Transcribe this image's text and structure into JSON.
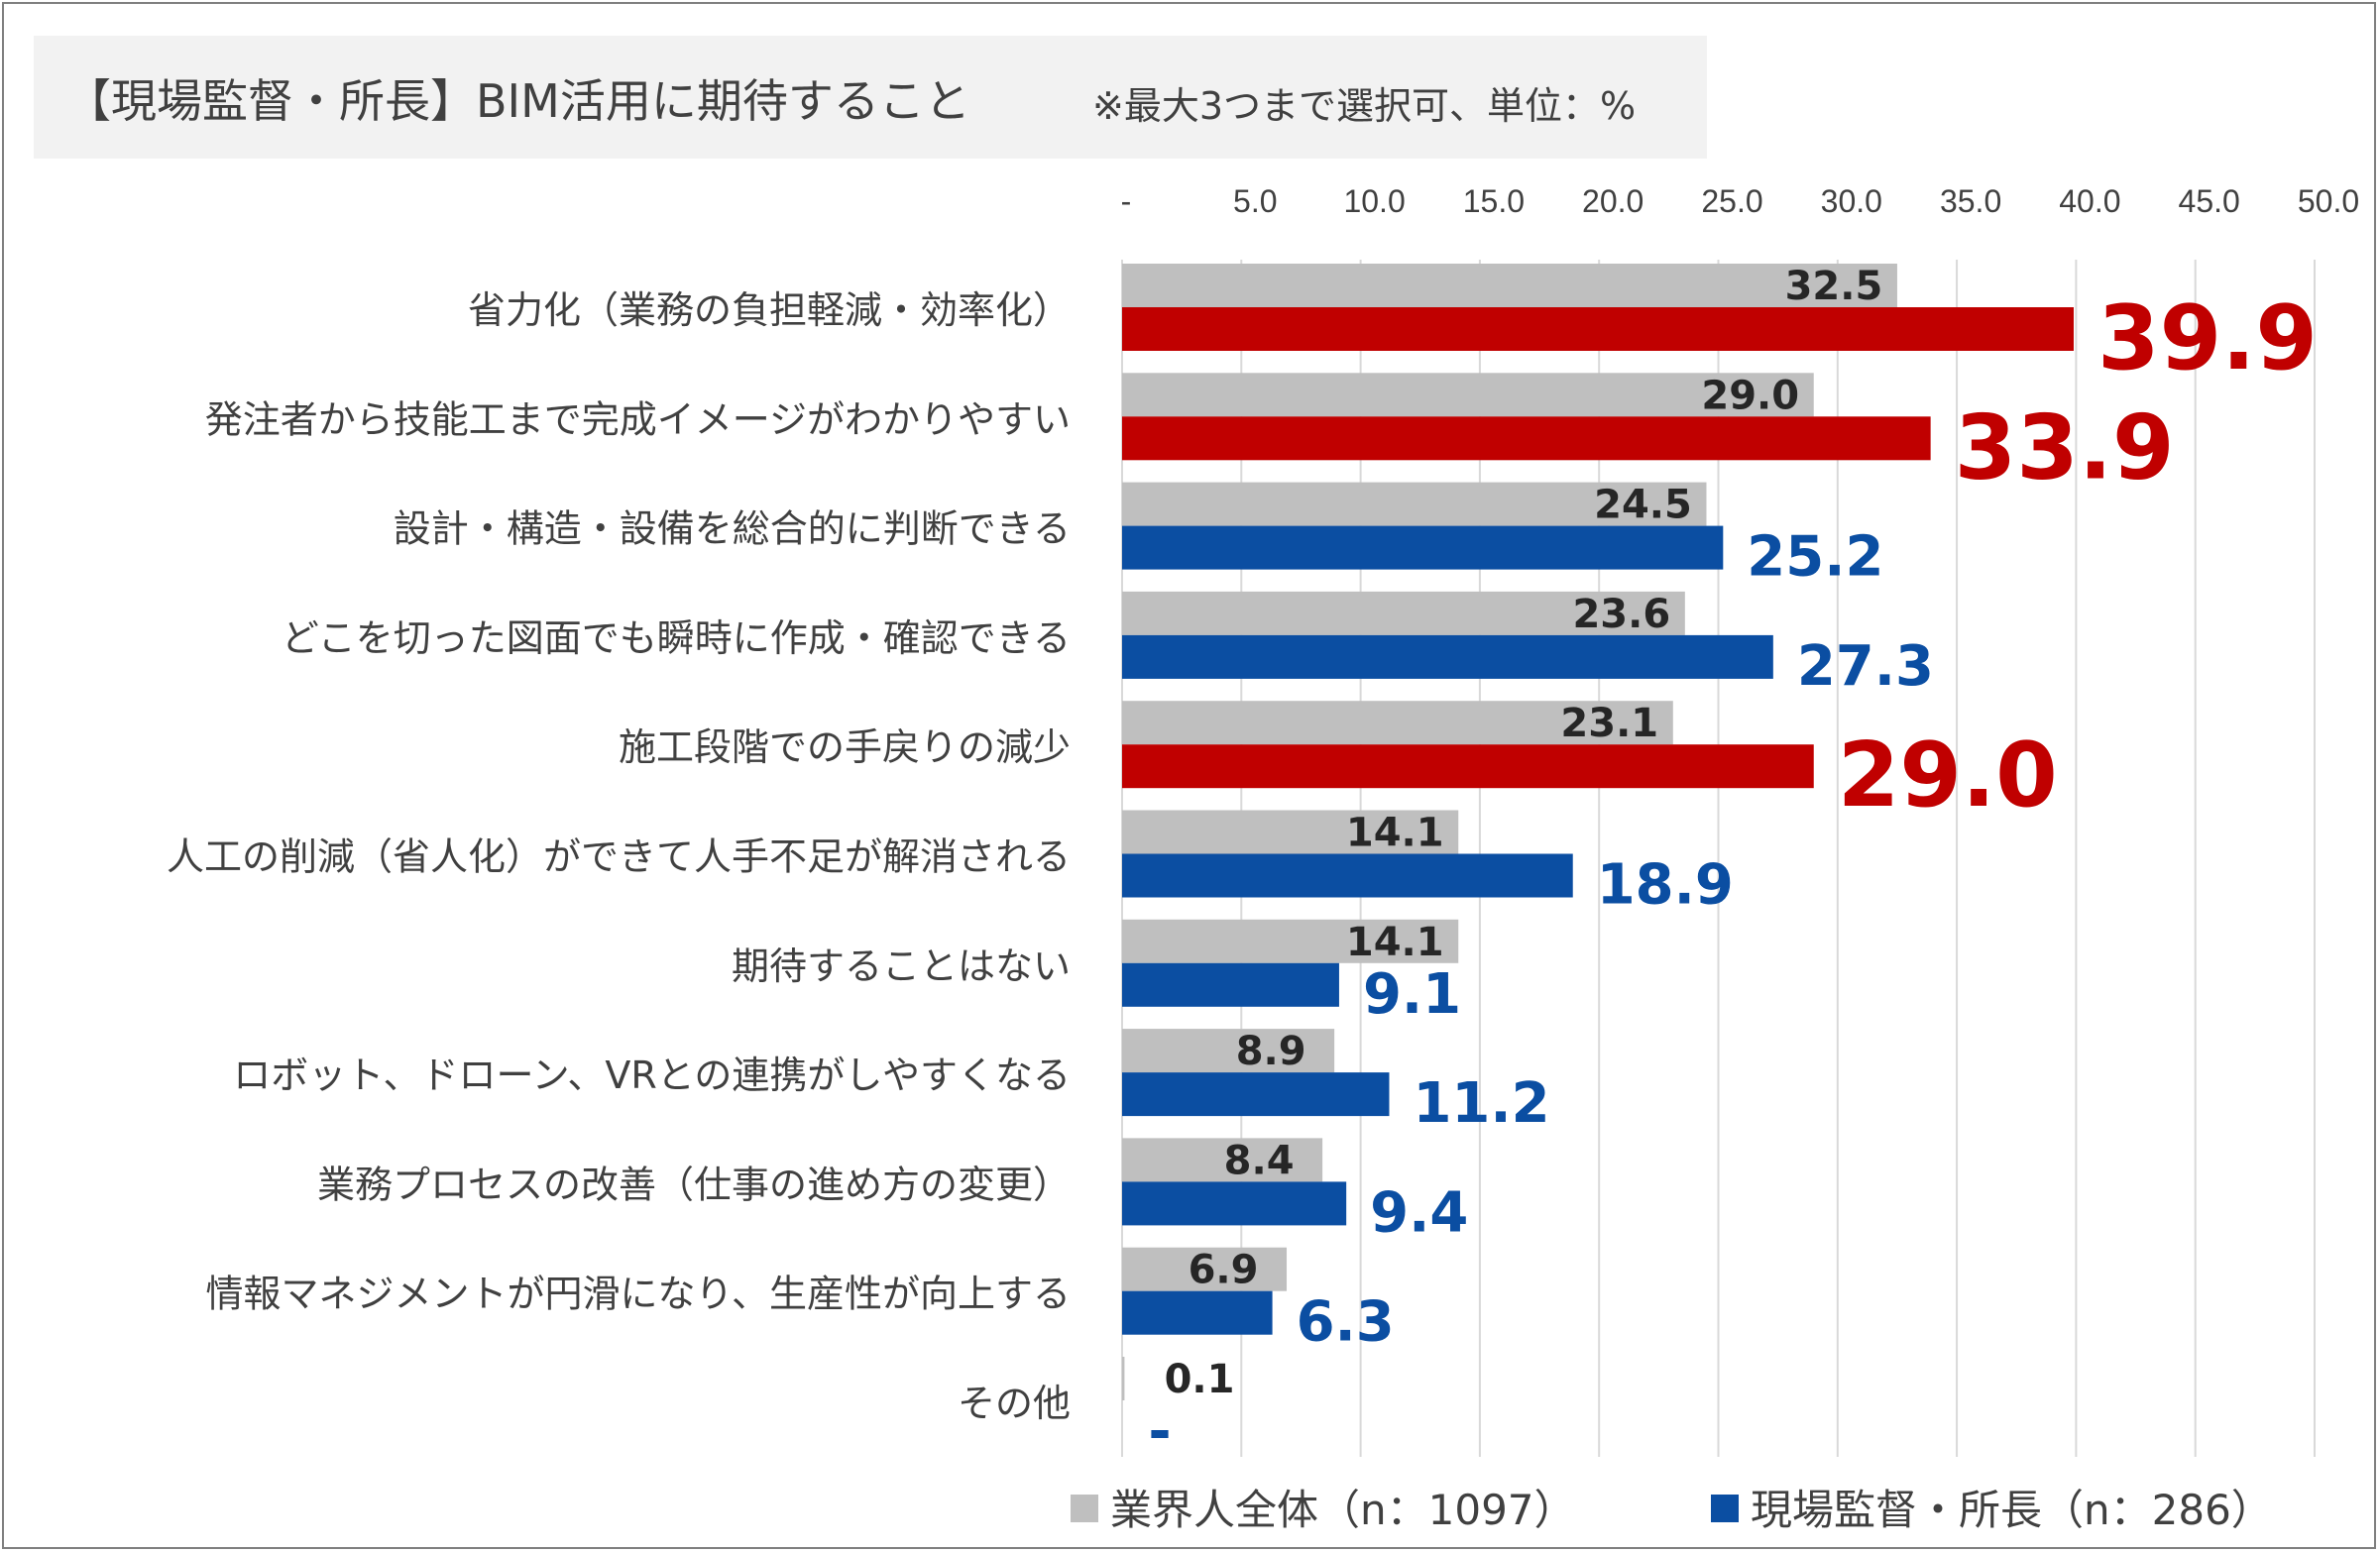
{
  "title": "【現場監督・所長】BIM活用に期待すること",
  "note": "※最大3つまで選択可、単位：%",
  "chart_data": {
    "type": "bar",
    "orientation": "horizontal",
    "categories": [
      "省力化（業務の負担軽減・効率化）",
      "発注者から技能工まで完成イメージがわかりやすい",
      "設計・構造・設備を総合的に判断できる",
      "どこを切った図面でも瞬時に作成・確認できる",
      "施工段階での手戻りの減少",
      "人工の削減（省人化）ができて人手不足が解消される",
      "期待することはない",
      "ロボット、ドローン、VRとの連携がしやすくなる",
      "業務プロセスの改善（仕事の進め方の変更）",
      "情報マネジメントが円滑になり、生産性が向上する",
      "その他"
    ],
    "series": [
      {
        "name": "業界人全体（n：1097）",
        "values": [
          32.5,
          29.0,
          24.5,
          23.6,
          23.1,
          14.1,
          14.1,
          8.9,
          8.4,
          6.9,
          0.1
        ],
        "labels": [
          "32.5",
          "29.0",
          "24.5",
          "23.6",
          "23.1",
          "14.1",
          "14.1",
          "8.9",
          "8.4",
          "6.9",
          "0.1"
        ],
        "color": "#bfbfbf"
      },
      {
        "name": "現場監督・所長（n：286）",
        "values": [
          39.9,
          33.9,
          25.2,
          27.3,
          29.0,
          18.9,
          9.1,
          11.2,
          9.4,
          6.3,
          0
        ],
        "labels": [
          "39.9",
          "33.9",
          "25.2",
          "27.3",
          "29.0",
          "18.9",
          "9.1",
          "11.2",
          "9.4",
          "6.3",
          "-"
        ],
        "color": "#0b4ea2",
        "highlight_color": "#c00000",
        "highlighted": [
          true,
          true,
          false,
          false,
          true,
          false,
          false,
          false,
          false,
          false,
          false
        ]
      }
    ],
    "xlim": [
      0,
      50
    ],
    "xticks": [
      "-",
      "5.0",
      "10.0",
      "15.0",
      "20.0",
      "25.0",
      "30.0",
      "35.0",
      "40.0",
      "45.0",
      "50.0"
    ],
    "grid": true,
    "legend_position": "bottom-right"
  }
}
